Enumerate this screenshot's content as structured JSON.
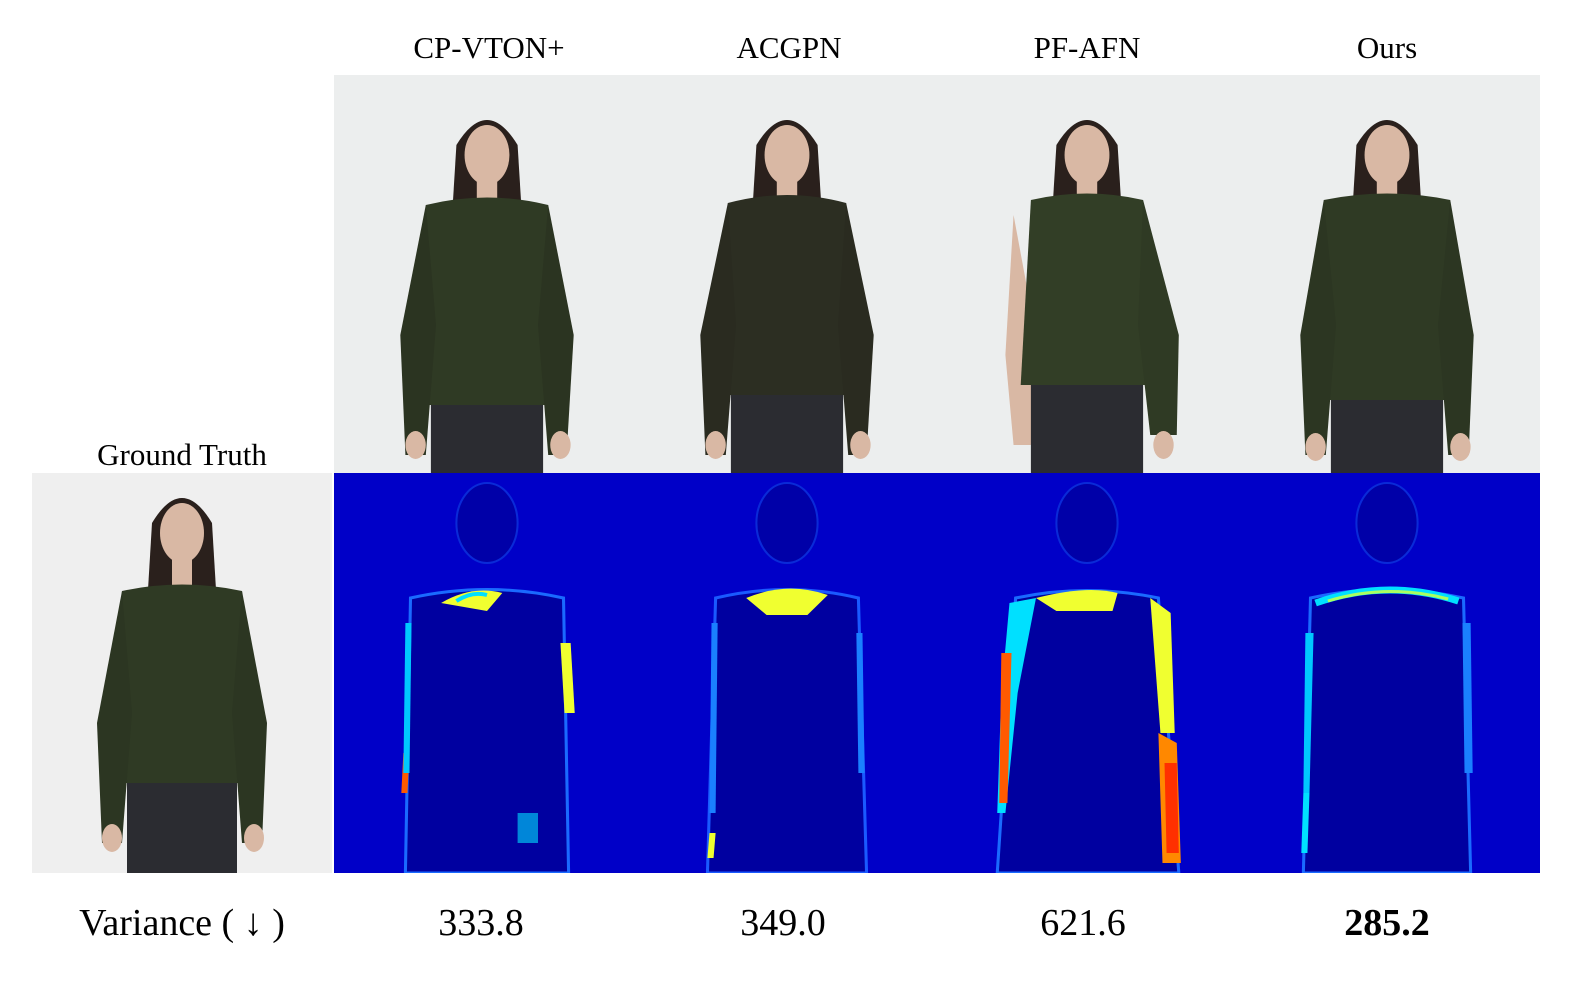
{
  "columns": [
    {
      "title": "CP-VTON+",
      "variance": "333.8",
      "best": false
    },
    {
      "title": "ACGPN",
      "variance": "349.0",
      "best": false
    },
    {
      "title": "PF-AFN",
      "variance": "621.6",
      "best": false
    },
    {
      "title": "Ours",
      "variance": "285.2",
      "best": true
    }
  ],
  "ground_truth_label": "Ground Truth",
  "metric_label": "Variance ( ↓ )",
  "colors": {
    "sweater": "#2f3a24",
    "jeans": "#2b2c31",
    "skin": "#d9b8a4",
    "hair": "#2a201c",
    "background": "#efefef",
    "heatmap_bg": "#0000c8",
    "heatmap_body": "#0000a0",
    "heat_mid": "#00e0ff",
    "heat_high": "#f0ff30",
    "heat_max": "#ff5a00"
  }
}
